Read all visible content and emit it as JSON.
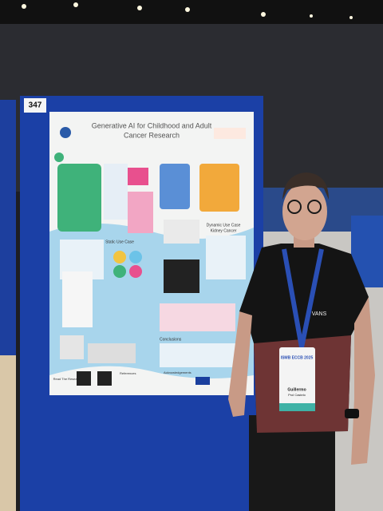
{
  "board_number": "347",
  "poster": {
    "title_line1": "Generative AI for Childhood and Adult",
    "title_line2": "Cancer Research",
    "sections": [
      "Static Use Case",
      "Dynamic Use Case",
      "Kidney Cancer",
      "Conclusions",
      "References",
      "Acknowledgements"
    ],
    "qr_caption": "Read The Research!"
  },
  "shirt_logo": "VANS",
  "badge": {
    "event": "ISMB ECCB 2025",
    "first_name": "Guillermo",
    "last_name": "Prol Castelo"
  }
}
